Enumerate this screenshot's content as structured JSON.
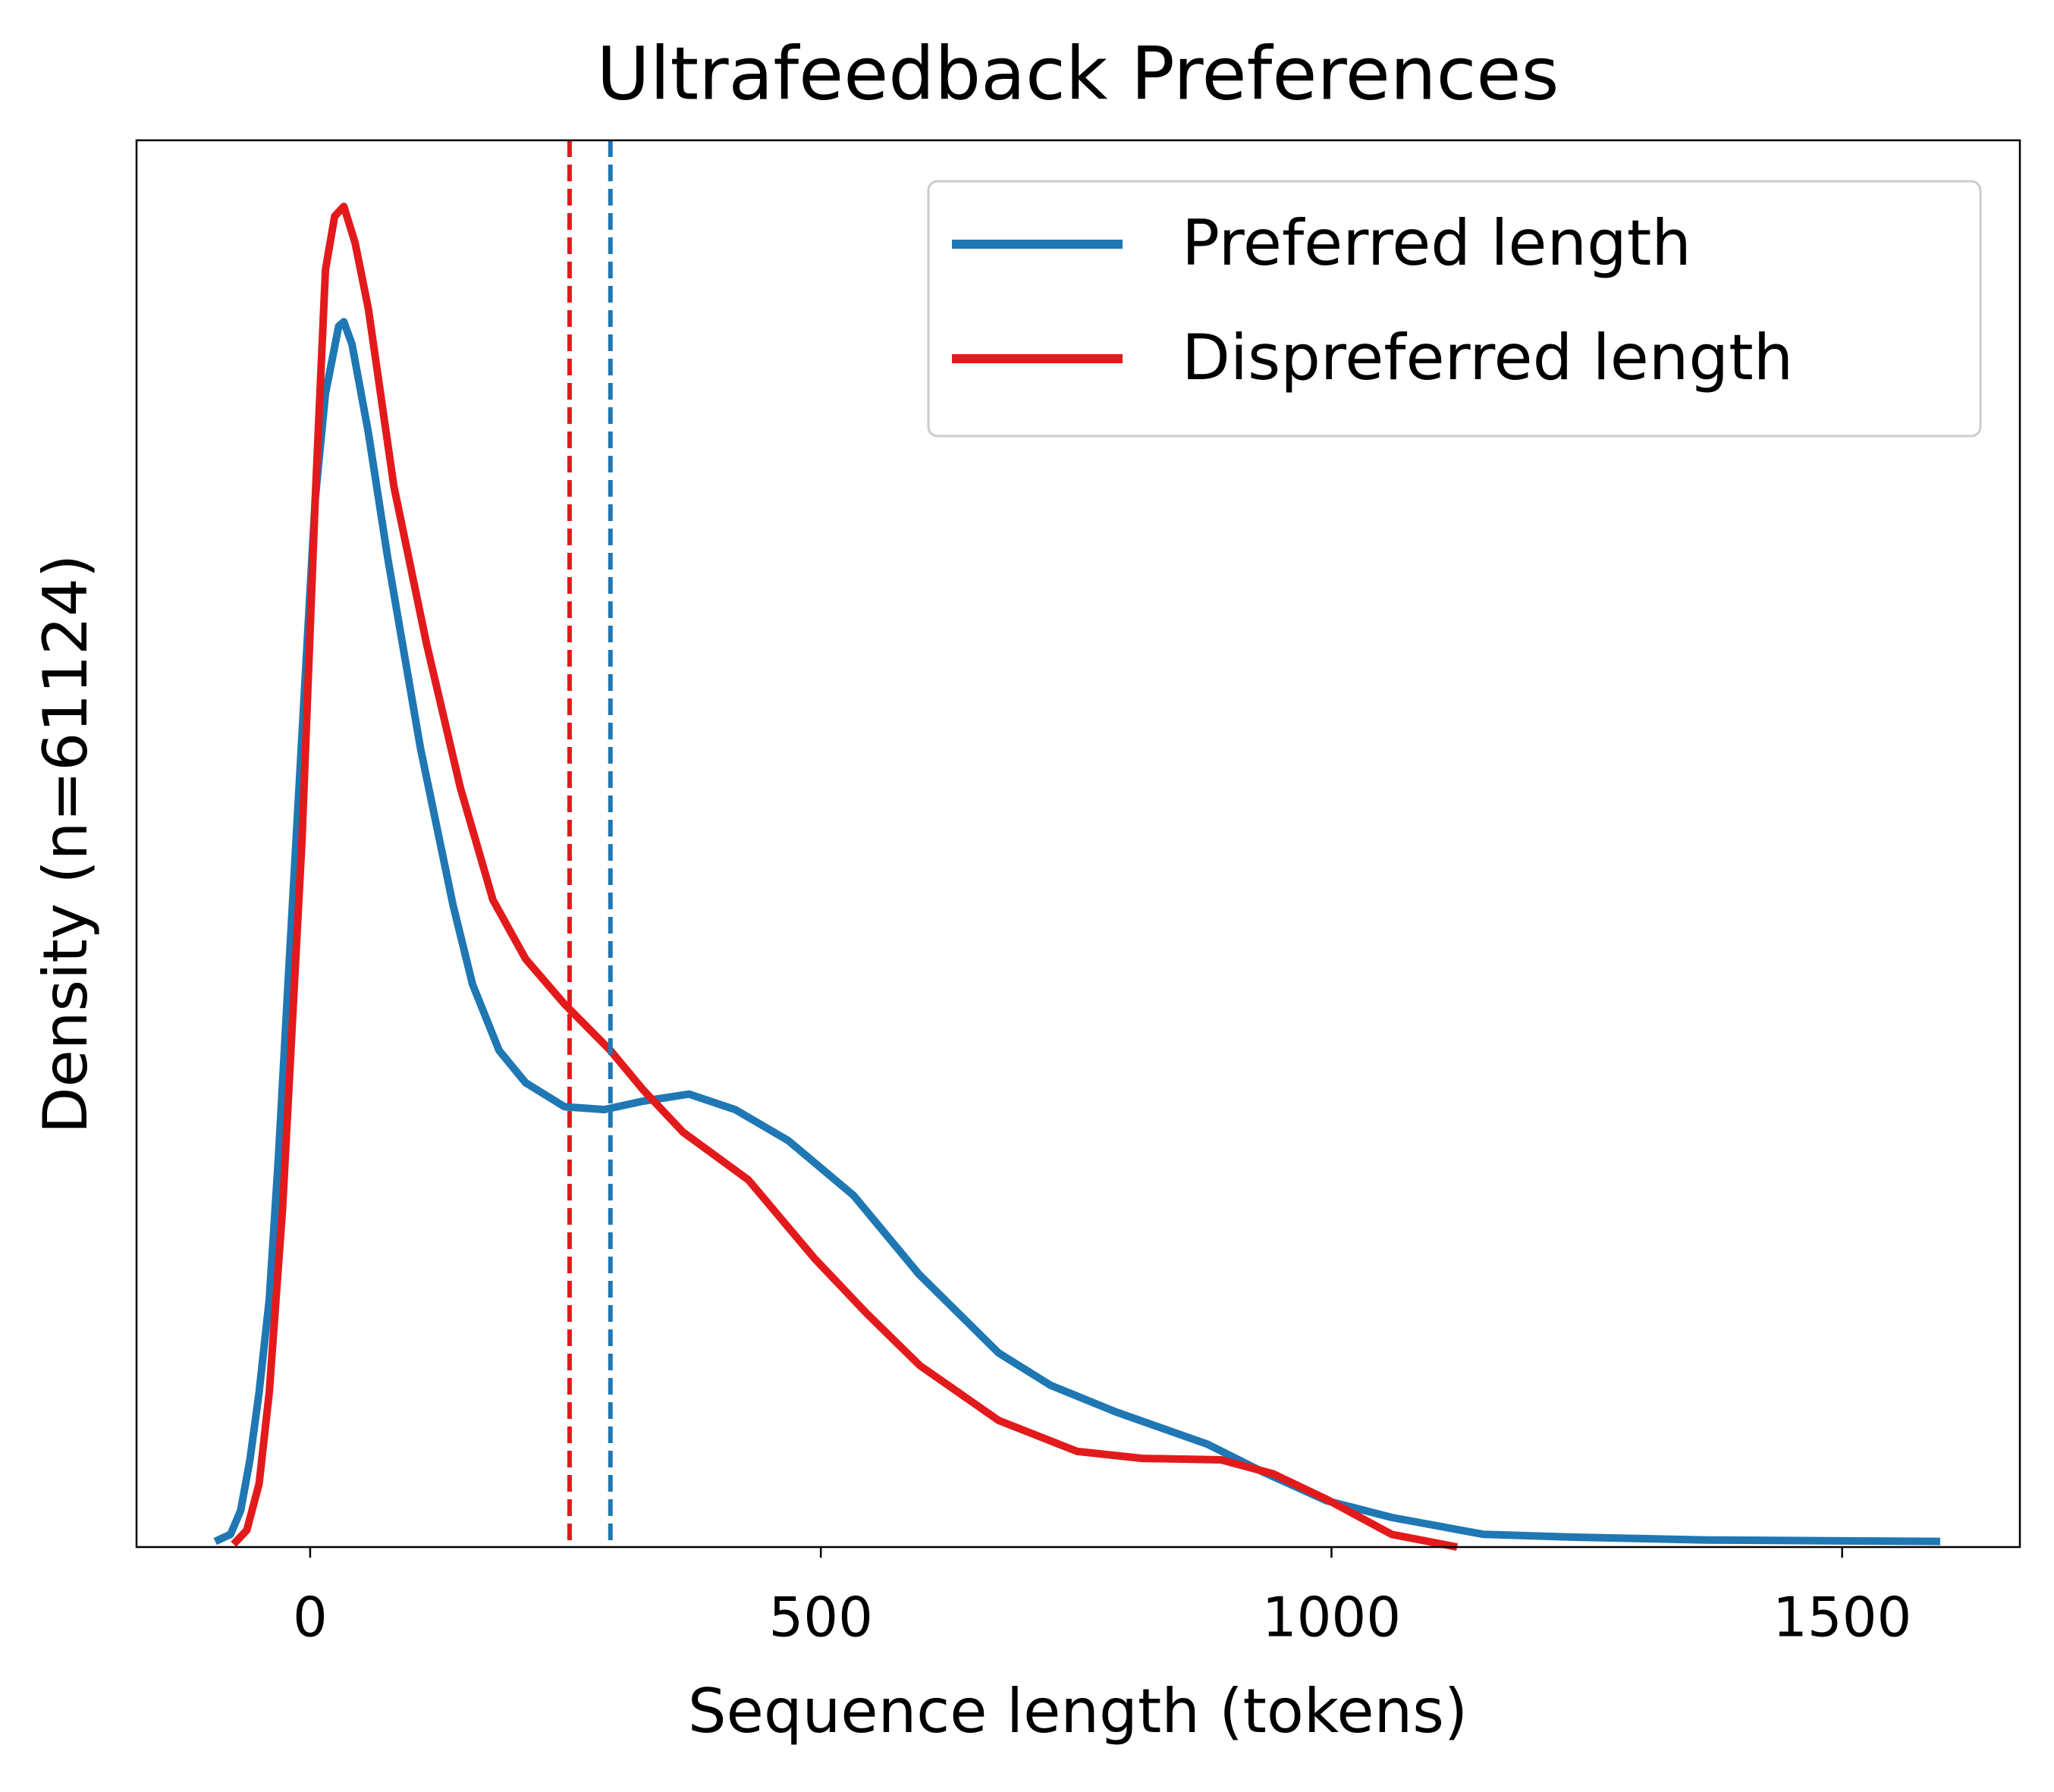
{
  "chart_data": {
    "type": "line",
    "title": "Ultrafeedback Preferences",
    "x_label": "Sequence length (tokens)",
    "y_label": "Density (n=61124)",
    "xlim": [
      -170,
      1674
    ],
    "ylim": [
      0,
      1
    ],
    "xticks": [
      0,
      500,
      1000,
      1500
    ],
    "legend": "upper right",
    "series": [
      {
        "name": "Preferred length",
        "color": "#1f77b4",
        "x": [
          -93,
          -78,
          -68,
          -59,
          -50,
          -40,
          -31,
          -21,
          -8,
          5,
          15,
          28,
          33,
          41,
          57,
          76,
          108,
          140,
          159,
          185,
          211,
          249,
          288,
          326,
          371,
          416,
          468,
          532,
          596,
          674,
          725,
          789,
          879,
          931,
          995,
          1059,
          1149,
          1239,
          1368,
          1596
        ],
        "values": [
          0.004,
          0.009,
          0.026,
          0.062,
          0.11,
          0.176,
          0.278,
          0.409,
          0.577,
          0.745,
          0.82,
          0.868,
          0.871,
          0.855,
          0.792,
          0.703,
          0.568,
          0.456,
          0.4,
          0.353,
          0.33,
          0.313,
          0.311,
          0.317,
          0.322,
          0.311,
          0.289,
          0.25,
          0.194,
          0.138,
          0.115,
          0.096,
          0.073,
          0.054,
          0.033,
          0.021,
          0.009,
          0.007,
          0.005,
          0.004
        ]
      },
      {
        "name": "Dispreferred length",
        "color": "#e31a1c",
        "x": [
          -75,
          -62,
          -50,
          -40,
          -27,
          -8,
          5,
          15,
          24,
          33,
          44,
          57,
          82,
          114,
          147,
          179,
          211,
          249,
          294,
          326,
          365,
          429,
          494,
          545,
          597,
          674,
          751,
          815,
          892,
          943,
          995,
          1059,
          1123
        ],
        "values": [
          0.002,
          0.012,
          0.045,
          0.11,
          0.241,
          0.502,
          0.745,
          0.908,
          0.946,
          0.953,
          0.927,
          0.88,
          0.754,
          0.642,
          0.54,
          0.46,
          0.418,
          0.386,
          0.353,
          0.325,
          0.295,
          0.261,
          0.205,
          0.166,
          0.129,
          0.09,
          0.068,
          0.063,
          0.062,
          0.052,
          0.034,
          0.009,
          0
        ]
      }
    ],
    "vlines": [
      {
        "x": 254,
        "color": "#e31a1c"
      },
      {
        "x": 294,
        "color": "#1f77b4"
      }
    ]
  }
}
